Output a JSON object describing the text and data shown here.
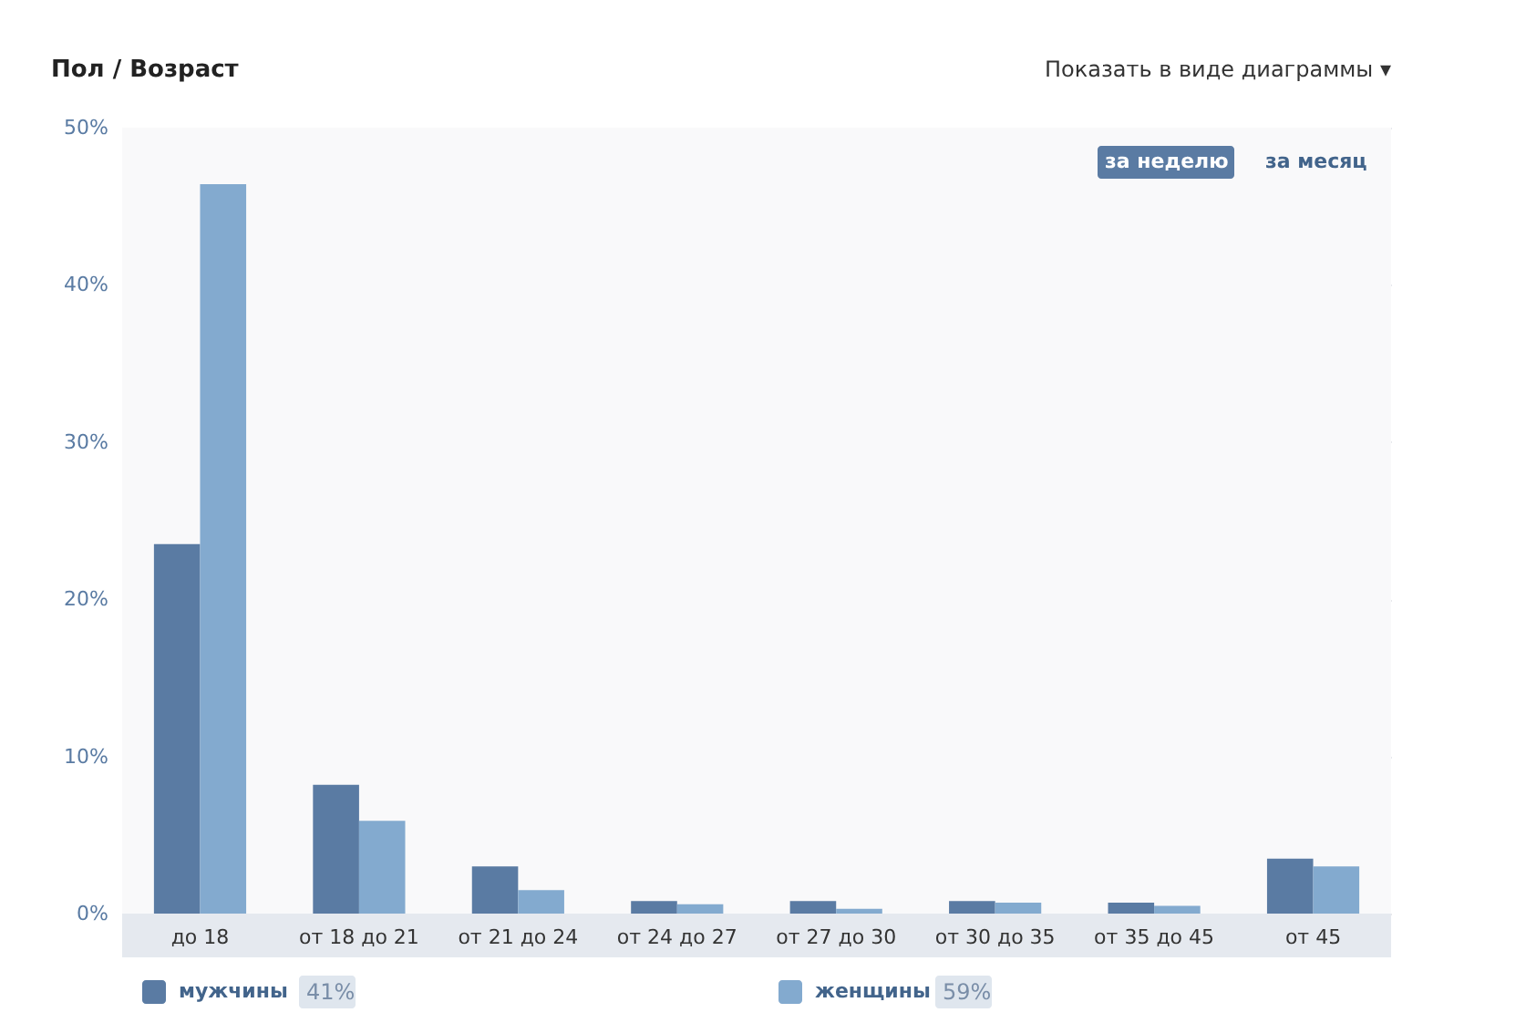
{
  "chart_data": {
    "type": "bar",
    "title": "Пол / Возраст",
    "categories": [
      "до 18",
      "от 18 до 21",
      "от 21 до 24",
      "от 24 до 27",
      "от 27 до 30",
      "от 30 до 35",
      "от 35 до 45",
      "от 45"
    ],
    "series": [
      {
        "name": "мужчины",
        "color": "#5a7ba3",
        "values": [
          23.5,
          8.2,
          3.0,
          0.8,
          0.8,
          0.8,
          0.7,
          3.5
        ]
      },
      {
        "name": "женщины",
        "color": "#83aacf",
        "values": [
          46.4,
          5.9,
          1.5,
          0.6,
          0.3,
          0.7,
          0.5,
          3.0
        ]
      }
    ],
    "ylim": [
      0,
      50
    ],
    "yticks": [
      {
        "value": 0,
        "label": "0%"
      },
      {
        "value": 10,
        "label": "10%"
      },
      {
        "value": 20,
        "label": "20%"
      },
      {
        "value": 30,
        "label": "30%"
      },
      {
        "value": 40,
        "label": "40%"
      },
      {
        "value": 50,
        "label": "50%"
      }
    ],
    "grid": "y",
    "legend": "bottom",
    "annotations": [
      "Показать в виде диаграммы ▾",
      "за неделю",
      "за месяц",
      "41%",
      "59%"
    ]
  }
}
